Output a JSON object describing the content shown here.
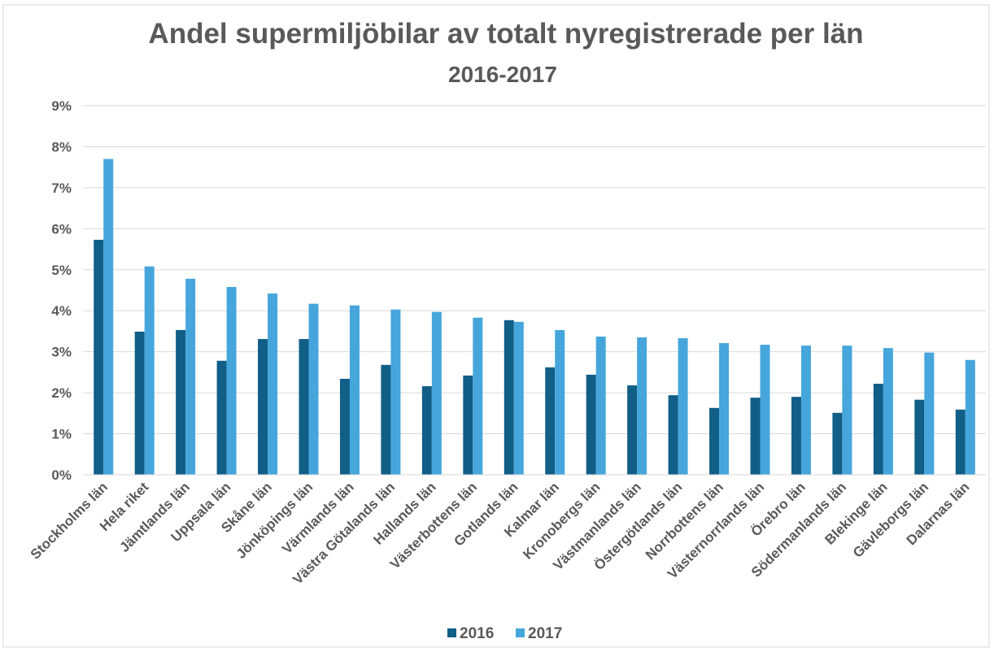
{
  "chart_data": {
    "type": "bar",
    "title": "Andel supermiljöbilar av totalt nyregistrerade per län",
    "subtitle": "2016-2017",
    "categories": [
      "Stockholms län",
      "Hela riket",
      "Jämtlands län",
      "Uppsala län",
      "Skåne län",
      "Jönköpings län",
      "Värmlands län",
      "Västra Götalands län",
      "Hallands län",
      "Västerbottens län",
      "Gotlands län",
      "Kalmar län",
      "Kronobergs län",
      "Västmanlands län",
      "Östergötlands län",
      "Norrbottens län",
      "Västernorrlands län",
      "Örebro län",
      "Södermanlands län",
      "Blekinge län",
      "Gävleborgs län",
      "Dalarnas län"
    ],
    "series": [
      {
        "name": "2016",
        "color": "#115e87",
        "values": [
          5.73,
          3.49,
          3.53,
          2.78,
          3.31,
          3.31,
          2.34,
          2.68,
          2.16,
          2.42,
          3.77,
          2.62,
          2.44,
          2.18,
          1.94,
          1.63,
          1.88,
          1.9,
          1.51,
          2.22,
          1.83,
          1.59
        ]
      },
      {
        "name": "2017",
        "color": "#46a6dc",
        "values": [
          7.7,
          5.08,
          4.78,
          4.58,
          4.42,
          4.17,
          4.13,
          4.03,
          3.97,
          3.83,
          3.73,
          3.53,
          3.37,
          3.35,
          3.33,
          3.21,
          3.17,
          3.15,
          3.15,
          3.09,
          2.98,
          2.8
        ]
      }
    ],
    "ylim": [
      0,
      9
    ],
    "yticks": [
      {
        "value": 0,
        "label": "0%"
      },
      {
        "value": 1,
        "label": "1%"
      },
      {
        "value": 2,
        "label": "2%"
      },
      {
        "value": 3,
        "label": "3%"
      },
      {
        "value": 4,
        "label": "4%"
      },
      {
        "value": 5,
        "label": "5%"
      },
      {
        "value": 6,
        "label": "6%"
      },
      {
        "value": 7,
        "label": "7%"
      },
      {
        "value": 8,
        "label": "8%"
      },
      {
        "value": 9,
        "label": "9%"
      }
    ],
    "grid": true,
    "legend": "bottom"
  }
}
